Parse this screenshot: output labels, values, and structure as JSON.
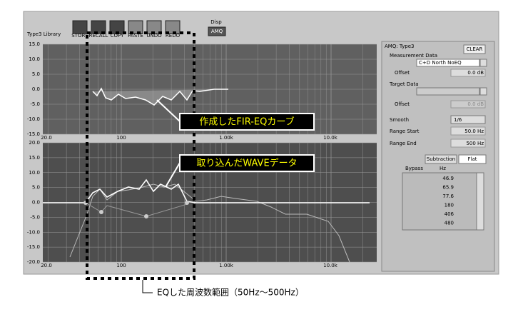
{
  "toolbar": {
    "library": "Type3 Library",
    "buttons": [
      "STORE",
      "RECALL",
      "COPY",
      "PASTE",
      "UNDO",
      "REDO"
    ],
    "disp": "Disp",
    "disp_value": "AMQ"
  },
  "top_graph": {
    "y_labels": [
      "15.0",
      "10.0",
      "5.0",
      "0.0",
      "-5.0",
      "-10.0",
      "-15.0"
    ],
    "x_labels": [
      "20.0",
      "100",
      "1.00k",
      "10.0k"
    ]
  },
  "bottom_graph": {
    "y_labels": [
      "20.0",
      "15.0",
      "10.0",
      "5.0",
      "0.0",
      "-5.0",
      "-10.0",
      "-15.0",
      "-20.0"
    ],
    "x_labels": [
      "20.0",
      "100",
      "1.00k",
      "10.0k"
    ]
  },
  "annotations": {
    "eq_curve": "作成したFIR-EQカーブ",
    "wave_data": "取り込んだWAVEデータ",
    "eq_range": "EQした周波数範囲（50Hz～500Hz）"
  },
  "panel": {
    "title": "AMQ: Type3",
    "clear": "CLEAR",
    "measurement_label": "Measurement Data",
    "measurement_value": "C+D North NoEQ",
    "offset1_label": "Offset",
    "offset1_value": "0.0 dB",
    "target_label": "Target Data",
    "offset2_label": "Offset",
    "offset2_value": "0.0 dB",
    "smooth_label": "Smooth",
    "smooth_value": "1/6",
    "range_start_label": "Range Start",
    "range_start_value": "50.0 Hz",
    "range_end_label": "Range End",
    "range_end_value": "500 Hz",
    "subtraction": "Subtraction",
    "flat": "Flat",
    "bypass": "Bypass",
    "hz": "Hz",
    "list": [
      "46.9",
      "65.9",
      "77.6",
      "180",
      "406",
      "480"
    ]
  }
}
